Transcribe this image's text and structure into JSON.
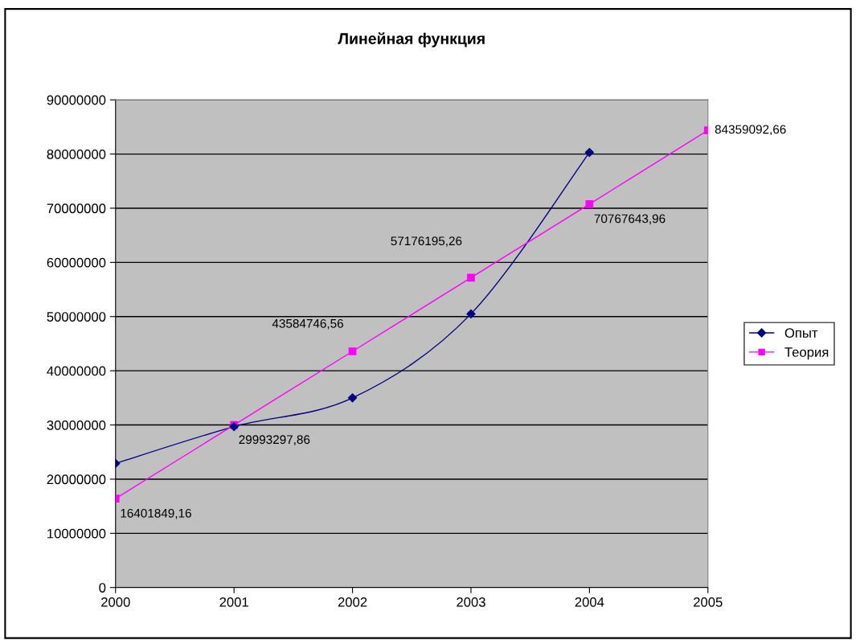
{
  "chart_data": {
    "type": "line",
    "title": "Линейная функция",
    "categories": [
      "2000",
      "2001",
      "2002",
      "2003",
      "2004",
      "2005"
    ],
    "series": [
      {
        "name": "Опыт",
        "color": "#000080",
        "marker": "diamond",
        "values": [
          22900000,
          29700000,
          35000000,
          50500000,
          80300000,
          null
        ]
      },
      {
        "name": "Теория",
        "color": "#ff00ff",
        "marker": "square",
        "values": [
          16401849.16,
          29993297.86,
          43584746.56,
          57176195.26,
          70767643.96,
          84359092.66
        ],
        "value_labels": [
          "16401849,16",
          "29993297,86",
          "43584746,56",
          "57176195,26",
          "70767643,96",
          "84359092,66"
        ]
      }
    ],
    "ylim": [
      0,
      90000000
    ],
    "yticks": [
      0,
      10000000,
      20000000,
      30000000,
      40000000,
      50000000,
      60000000,
      70000000,
      80000000,
      90000000
    ],
    "grid": "y",
    "legend": "right"
  }
}
